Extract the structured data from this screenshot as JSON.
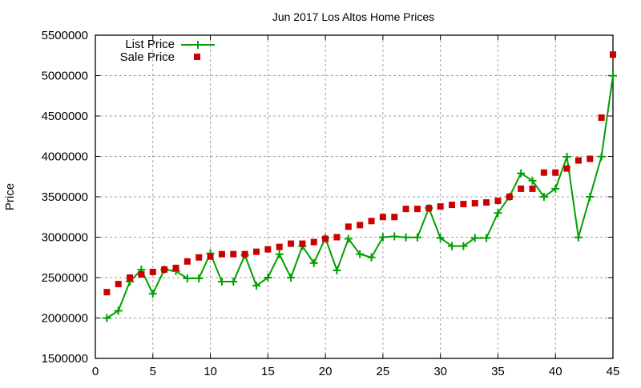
{
  "chart_data": {
    "type": "line",
    "title": "Jun 2017 Los Altos Home Prices",
    "xlabel": "",
    "ylabel": "Price",
    "xlim": [
      0,
      45
    ],
    "ylim": [
      1500000,
      5500000
    ],
    "grid": true,
    "legend_position": "top-left",
    "x_ticks": [
      0,
      5,
      10,
      15,
      20,
      25,
      30,
      35,
      40,
      45
    ],
    "y_ticks": [
      1500000,
      2000000,
      2500000,
      3000000,
      3500000,
      4000000,
      4500000,
      5000000,
      5500000
    ],
    "x": [
      1,
      2,
      3,
      4,
      5,
      6,
      7,
      8,
      9,
      10,
      11,
      12,
      13,
      14,
      15,
      16,
      17,
      18,
      19,
      20,
      21,
      22,
      23,
      24,
      25,
      26,
      27,
      28,
      29,
      30,
      31,
      32,
      33,
      34,
      35,
      36,
      37,
      38,
      39,
      40,
      41,
      42,
      43,
      44,
      45
    ],
    "series": [
      {
        "name": "List Price",
        "style": "linespoints",
        "marker": "plus",
        "color": "#00a000",
        "values": [
          1999000,
          2090000,
          2450000,
          2598000,
          2300000,
          2600000,
          2580000,
          2490000,
          2490000,
          2800000,
          2450000,
          2450000,
          2780000,
          2400000,
          2500000,
          2790000,
          2500000,
          2890000,
          2680000,
          2990000,
          2590000,
          2980000,
          2790000,
          2750000,
          3000000,
          3010000,
          2998000,
          2998000,
          3360000,
          2990000,
          2890000,
          2890000,
          2990000,
          2990000,
          3300000,
          3500000,
          3790000,
          3700000,
          3500000,
          3600000,
          3995000,
          2998000,
          3500000,
          3998000,
          4998000
        ]
      },
      {
        "name": "Sale Price",
        "style": "points",
        "marker": "square",
        "color": "#cc0000",
        "values": [
          2320000,
          2420000,
          2500000,
          2540000,
          2570000,
          2600000,
          2620000,
          2700000,
          2750000,
          2760000,
          2790000,
          2790000,
          2790000,
          2820000,
          2850000,
          2880000,
          2920000,
          2920000,
          2940000,
          2980000,
          3000000,
          3130000,
          3150000,
          3200000,
          3250000,
          3250000,
          3350000,
          3350000,
          3360000,
          3380000,
          3400000,
          3410000,
          3420000,
          3430000,
          3450000,
          3500000,
          3600000,
          3600000,
          3800000,
          3800000,
          3850000,
          3950000,
          3970000,
          4480000,
          5260000
        ]
      }
    ]
  }
}
